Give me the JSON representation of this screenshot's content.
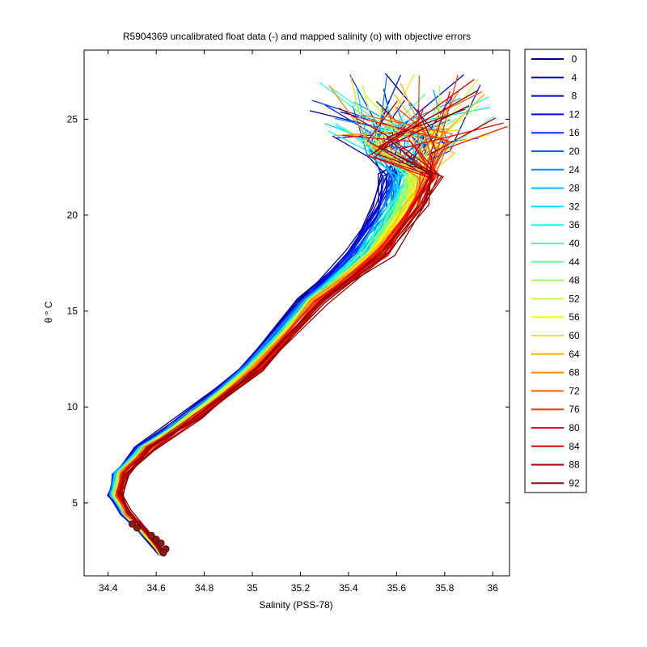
{
  "chart_data": {
    "type": "line",
    "title": "R5904369 uncalibrated float data (-) and mapped salinity (o) with objective errors",
    "xlabel": "Salinity (PSS-78)",
    "ylabel": "θ ° C",
    "xlim": [
      34.3,
      36.07
    ],
    "ylim": [
      1.2,
      28.6
    ],
    "xticks": [
      34.4,
      34.6,
      34.8,
      35,
      35.2,
      35.4,
      35.6,
      35.8,
      36
    ],
    "xtick_labels": [
      "34.4",
      "34.6",
      "34.8",
      "35",
      "35.2",
      "35.4",
      "35.6",
      "35.8",
      "36"
    ],
    "yticks": [
      5,
      10,
      15,
      20,
      25
    ],
    "ytick_labels": [
      "5",
      "10",
      "15",
      "20",
      "25"
    ],
    "grid": false,
    "legend_position": "outside-right",
    "colormap": "jet",
    "legend": [
      "0",
      "4",
      "8",
      "12",
      "16",
      "20",
      "24",
      "28",
      "32",
      "36",
      "40",
      "44",
      "48",
      "52",
      "56",
      "60",
      "64",
      "68",
      "72",
      "76",
      "80",
      "84",
      "88",
      "92"
    ],
    "legend_colors": [
      "#00008f",
      "#0000b3",
      "#0000d7",
      "#0000fb",
      "#001fff",
      "#0043ff",
      "#0067ff",
      "#008bff",
      "#00afff",
      "#00d3ff",
      "#00f7ff",
      "#1bffe3",
      "#3fffbf",
      "#63ff9b",
      "#87ff77",
      "#abff53",
      "#cfff2f",
      "#f3ff0b",
      "#ffd700",
      "#ffb300",
      "#ff8f00",
      "#ff6b00",
      "#ff4700",
      "#ff2300",
      "#ff0000",
      "#db0000",
      "#b70000",
      "#930000",
      "#800000"
    ],
    "series_note": "",
    "profile_template": {
      "description": "",
      "points": [
        [
          35.6,
          22.0
        ],
        [
          35.58,
          20.5
        ],
        [
          35.45,
          18.0
        ],
        [
          35.25,
          15.5
        ],
        [
          35.0,
          12.0
        ],
        [
          34.75,
          9.5
        ],
        [
          34.55,
          7.8
        ],
        [
          34.45,
          6.5
        ],
        [
          34.43,
          5.5
        ],
        [
          34.47,
          4.5
        ],
        [
          34.55,
          3.5
        ],
        [
          34.62,
          2.4
        ]
      ]
    },
    "mapped_markers": [
      [
        34.5,
        3.9
      ],
      [
        34.52,
        3.7
      ],
      [
        34.58,
        3.3
      ],
      [
        34.6,
        3.1
      ],
      [
        34.62,
        2.9
      ],
      [
        34.64,
        2.6
      ],
      [
        34.63,
        2.4
      ]
    ]
  }
}
